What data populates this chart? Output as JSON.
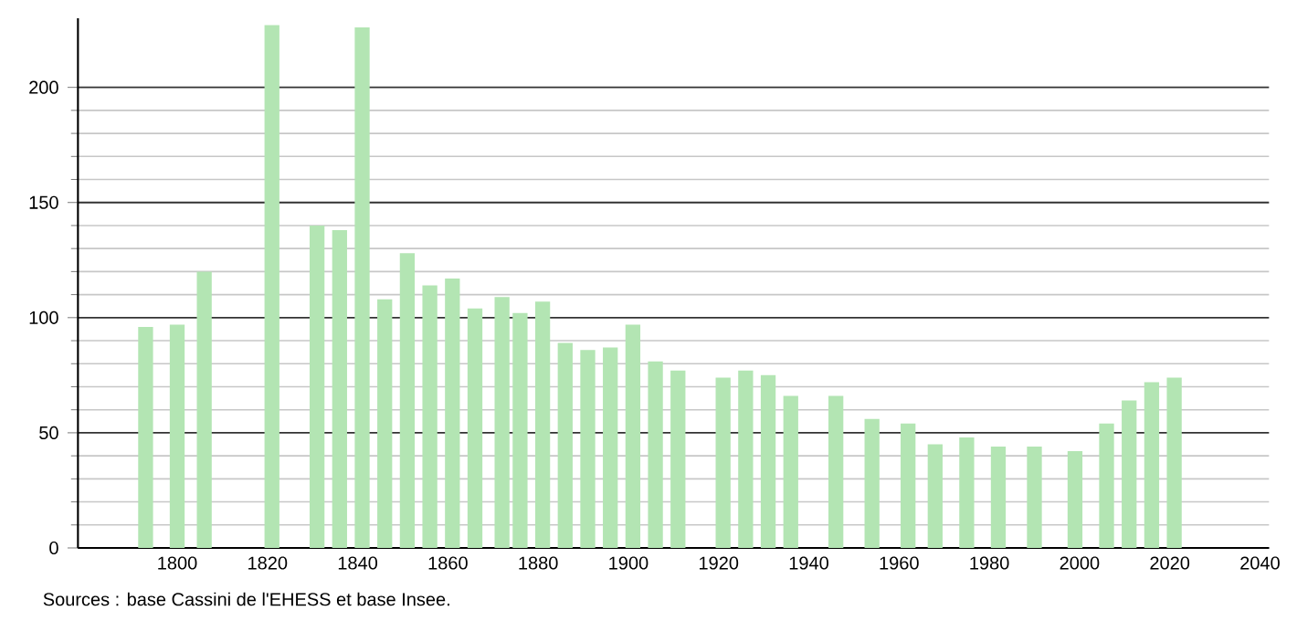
{
  "chart_data": {
    "type": "bar",
    "x": [
      1793,
      1800,
      1806,
      1821,
      1831,
      1836,
      1841,
      1846,
      1851,
      1856,
      1861,
      1866,
      1872,
      1876,
      1881,
      1886,
      1891,
      1896,
      1901,
      1906,
      1911,
      1921,
      1926,
      1931,
      1936,
      1946,
      1954,
      1962,
      1968,
      1975,
      1982,
      1990,
      1999,
      2006,
      2011,
      2016,
      2021
    ],
    "values": [
      96,
      97,
      120,
      227,
      140,
      138,
      226,
      108,
      128,
      114,
      117,
      104,
      109,
      102,
      107,
      89,
      86,
      87,
      97,
      81,
      77,
      74,
      77,
      75,
      66,
      66,
      56,
      54,
      45,
      48,
      44,
      44,
      42,
      54,
      64,
      72,
      74
    ],
    "color": "#b3e5b3",
    "xlim": [
      1778,
      2042
    ],
    "xticks": [
      1800,
      1820,
      1840,
      1860,
      1880,
      1900,
      1920,
      1940,
      1960,
      1980,
      2000,
      2020,
      2040
    ],
    "ylim": [
      0,
      230
    ],
    "yticks": [
      0,
      50,
      100,
      150,
      200
    ],
    "grid": "y",
    "annotations": [
      "Sources : base Cassini de l'EHESS et base Insee."
    ]
  }
}
